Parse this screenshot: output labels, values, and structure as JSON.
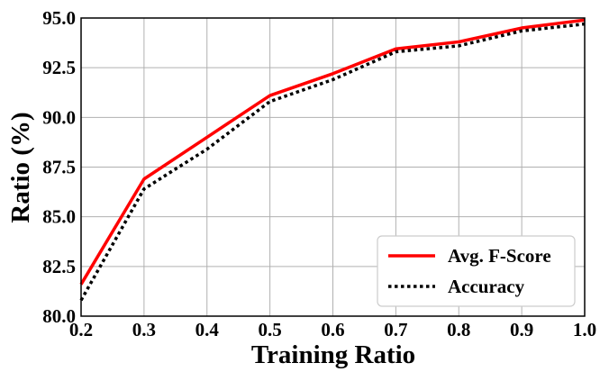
{
  "chart_data": {
    "type": "line",
    "xlabel": "Training Ratio",
    "ylabel": "Ratio (%)",
    "x": [
      0.2,
      0.3,
      0.4,
      0.5,
      0.6,
      0.7,
      0.8,
      0.9,
      1.0
    ],
    "xlim": [
      0.2,
      1.0
    ],
    "ylim": [
      80.0,
      95.0
    ],
    "xticks": [
      "0.2",
      "0.3",
      "0.4",
      "0.5",
      "0.6",
      "0.7",
      "0.8",
      "0.9",
      "1.0"
    ],
    "yticks": [
      "80.0",
      "82.5",
      "85.0",
      "87.5",
      "90.0",
      "92.5",
      "95.0"
    ],
    "grid": true,
    "legend_position": "bottom-right",
    "series": [
      {
        "name": "Avg. F-Score",
        "values": [
          81.6,
          86.9,
          89.0,
          91.1,
          92.2,
          93.45,
          93.8,
          94.5,
          94.9
        ],
        "color": "#ff0000",
        "style": "solid"
      },
      {
        "name": "Accuracy",
        "values": [
          80.8,
          86.4,
          88.4,
          90.8,
          91.9,
          93.3,
          93.6,
          94.35,
          94.7
        ],
        "color": "#000000",
        "style": "dotted"
      }
    ]
  }
}
